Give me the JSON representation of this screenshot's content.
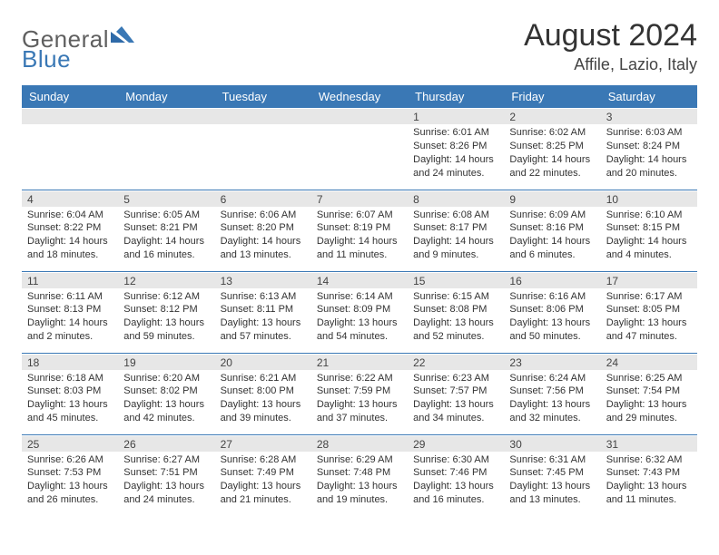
{
  "brand": {
    "general": "General",
    "blue": "Blue"
  },
  "title": "August 2024",
  "location": "Affile, Lazio, Italy",
  "colors": {
    "header_bg": "#3a78b5",
    "header_text": "#ffffff",
    "daynum_bg": "#e7e7e7",
    "row_divider": "#3a78b5",
    "text": "#333333",
    "logo_gray": "#5f5f5f",
    "logo_blue": "#3a78b5"
  },
  "dow": [
    "Sunday",
    "Monday",
    "Tuesday",
    "Wednesday",
    "Thursday",
    "Friday",
    "Saturday"
  ],
  "weeks": [
    [
      {
        "n": "",
        "sr": "",
        "ss": "",
        "dl": ""
      },
      {
        "n": "",
        "sr": "",
        "ss": "",
        "dl": ""
      },
      {
        "n": "",
        "sr": "",
        "ss": "",
        "dl": ""
      },
      {
        "n": "",
        "sr": "",
        "ss": "",
        "dl": ""
      },
      {
        "n": "1",
        "sr": "Sunrise: 6:01 AM",
        "ss": "Sunset: 8:26 PM",
        "dl": "Daylight: 14 hours and 24 minutes."
      },
      {
        "n": "2",
        "sr": "Sunrise: 6:02 AM",
        "ss": "Sunset: 8:25 PM",
        "dl": "Daylight: 14 hours and 22 minutes."
      },
      {
        "n": "3",
        "sr": "Sunrise: 6:03 AM",
        "ss": "Sunset: 8:24 PM",
        "dl": "Daylight: 14 hours and 20 minutes."
      }
    ],
    [
      {
        "n": "4",
        "sr": "Sunrise: 6:04 AM",
        "ss": "Sunset: 8:22 PM",
        "dl": "Daylight: 14 hours and 18 minutes."
      },
      {
        "n": "5",
        "sr": "Sunrise: 6:05 AM",
        "ss": "Sunset: 8:21 PM",
        "dl": "Daylight: 14 hours and 16 minutes."
      },
      {
        "n": "6",
        "sr": "Sunrise: 6:06 AM",
        "ss": "Sunset: 8:20 PM",
        "dl": "Daylight: 14 hours and 13 minutes."
      },
      {
        "n": "7",
        "sr": "Sunrise: 6:07 AM",
        "ss": "Sunset: 8:19 PM",
        "dl": "Daylight: 14 hours and 11 minutes."
      },
      {
        "n": "8",
        "sr": "Sunrise: 6:08 AM",
        "ss": "Sunset: 8:17 PM",
        "dl": "Daylight: 14 hours and 9 minutes."
      },
      {
        "n": "9",
        "sr": "Sunrise: 6:09 AM",
        "ss": "Sunset: 8:16 PM",
        "dl": "Daylight: 14 hours and 6 minutes."
      },
      {
        "n": "10",
        "sr": "Sunrise: 6:10 AM",
        "ss": "Sunset: 8:15 PM",
        "dl": "Daylight: 14 hours and 4 minutes."
      }
    ],
    [
      {
        "n": "11",
        "sr": "Sunrise: 6:11 AM",
        "ss": "Sunset: 8:13 PM",
        "dl": "Daylight: 14 hours and 2 minutes."
      },
      {
        "n": "12",
        "sr": "Sunrise: 6:12 AM",
        "ss": "Sunset: 8:12 PM",
        "dl": "Daylight: 13 hours and 59 minutes."
      },
      {
        "n": "13",
        "sr": "Sunrise: 6:13 AM",
        "ss": "Sunset: 8:11 PM",
        "dl": "Daylight: 13 hours and 57 minutes."
      },
      {
        "n": "14",
        "sr": "Sunrise: 6:14 AM",
        "ss": "Sunset: 8:09 PM",
        "dl": "Daylight: 13 hours and 54 minutes."
      },
      {
        "n": "15",
        "sr": "Sunrise: 6:15 AM",
        "ss": "Sunset: 8:08 PM",
        "dl": "Daylight: 13 hours and 52 minutes."
      },
      {
        "n": "16",
        "sr": "Sunrise: 6:16 AM",
        "ss": "Sunset: 8:06 PM",
        "dl": "Daylight: 13 hours and 50 minutes."
      },
      {
        "n": "17",
        "sr": "Sunrise: 6:17 AM",
        "ss": "Sunset: 8:05 PM",
        "dl": "Daylight: 13 hours and 47 minutes."
      }
    ],
    [
      {
        "n": "18",
        "sr": "Sunrise: 6:18 AM",
        "ss": "Sunset: 8:03 PM",
        "dl": "Daylight: 13 hours and 45 minutes."
      },
      {
        "n": "19",
        "sr": "Sunrise: 6:20 AM",
        "ss": "Sunset: 8:02 PM",
        "dl": "Daylight: 13 hours and 42 minutes."
      },
      {
        "n": "20",
        "sr": "Sunrise: 6:21 AM",
        "ss": "Sunset: 8:00 PM",
        "dl": "Daylight: 13 hours and 39 minutes."
      },
      {
        "n": "21",
        "sr": "Sunrise: 6:22 AM",
        "ss": "Sunset: 7:59 PM",
        "dl": "Daylight: 13 hours and 37 minutes."
      },
      {
        "n": "22",
        "sr": "Sunrise: 6:23 AM",
        "ss": "Sunset: 7:57 PM",
        "dl": "Daylight: 13 hours and 34 minutes."
      },
      {
        "n": "23",
        "sr": "Sunrise: 6:24 AM",
        "ss": "Sunset: 7:56 PM",
        "dl": "Daylight: 13 hours and 32 minutes."
      },
      {
        "n": "24",
        "sr": "Sunrise: 6:25 AM",
        "ss": "Sunset: 7:54 PM",
        "dl": "Daylight: 13 hours and 29 minutes."
      }
    ],
    [
      {
        "n": "25",
        "sr": "Sunrise: 6:26 AM",
        "ss": "Sunset: 7:53 PM",
        "dl": "Daylight: 13 hours and 26 minutes."
      },
      {
        "n": "26",
        "sr": "Sunrise: 6:27 AM",
        "ss": "Sunset: 7:51 PM",
        "dl": "Daylight: 13 hours and 24 minutes."
      },
      {
        "n": "27",
        "sr": "Sunrise: 6:28 AM",
        "ss": "Sunset: 7:49 PM",
        "dl": "Daylight: 13 hours and 21 minutes."
      },
      {
        "n": "28",
        "sr": "Sunrise: 6:29 AM",
        "ss": "Sunset: 7:48 PM",
        "dl": "Daylight: 13 hours and 19 minutes."
      },
      {
        "n": "29",
        "sr": "Sunrise: 6:30 AM",
        "ss": "Sunset: 7:46 PM",
        "dl": "Daylight: 13 hours and 16 minutes."
      },
      {
        "n": "30",
        "sr": "Sunrise: 6:31 AM",
        "ss": "Sunset: 7:45 PM",
        "dl": "Daylight: 13 hours and 13 minutes."
      },
      {
        "n": "31",
        "sr": "Sunrise: 6:32 AM",
        "ss": "Sunset: 7:43 PM",
        "dl": "Daylight: 13 hours and 11 minutes."
      }
    ]
  ]
}
